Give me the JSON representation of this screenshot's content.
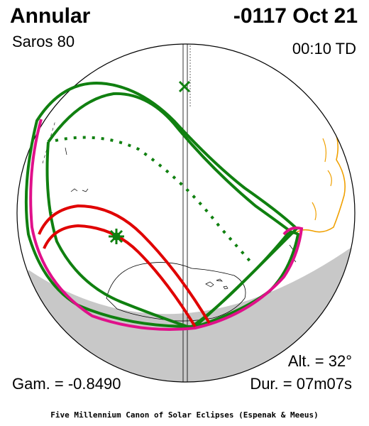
{
  "header": {
    "eclipse_type": "Annular",
    "date": "-0117 Oct 21",
    "saros": "Saros  80",
    "time": "00:10 TD"
  },
  "footer": {
    "altitude": "Alt. = 32°",
    "gamma": "Gam. = -0.8490",
    "duration": "Dur. = 07m07s",
    "credit": "Five Millennium Canon of Solar Eclipses (Espenak & Meeus)"
  },
  "colors": {
    "central_path": "#e00000",
    "penumbra_limit": "#108010",
    "rise_set_limit": "#e0108a",
    "night_shade": "#c8c8c8",
    "land_outline": "#f0a000"
  },
  "markers": {
    "greatest_eclipse": "star-marker",
    "sub_solar_point": "x-marker"
  }
}
